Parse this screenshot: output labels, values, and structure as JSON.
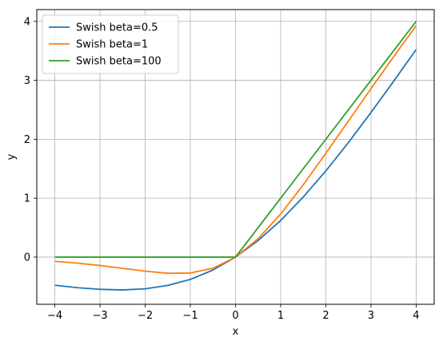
{
  "chart_data": {
    "type": "line",
    "title": "",
    "xlabel": "x",
    "ylabel": "y",
    "xlim": [
      -4.4,
      4.4
    ],
    "ylim": [
      -0.8,
      4.2
    ],
    "xticks": [
      -4,
      -3,
      -2,
      -1,
      0,
      1,
      2,
      3,
      4
    ],
    "xtick_labels": [
      "−4",
      "−3",
      "−2",
      "−1",
      "0",
      "1",
      "2",
      "3",
      "4"
    ],
    "yticks": [
      0,
      1,
      2,
      3,
      4
    ],
    "ytick_labels": [
      "0",
      "1",
      "2",
      "3",
      "4"
    ],
    "grid": true,
    "legend_position": "top-left",
    "x": [
      -4.0,
      -3.5,
      -3.0,
      -2.5,
      -2.0,
      -1.5,
      -1.0,
      -0.5,
      0.0,
      0.5,
      1.0,
      1.5,
      2.0,
      2.5,
      3.0,
      3.5,
      4.0
    ],
    "series": [
      {
        "name": "Swish beta=0.5",
        "color": "#1f77b4",
        "values": [
          -0.477,
          -0.519,
          -0.546,
          -0.557,
          -0.538,
          -0.48,
          -0.378,
          -0.219,
          0.0,
          0.281,
          0.622,
          1.02,
          1.462,
          1.943,
          2.454,
          2.981,
          3.523
        ]
      },
      {
        "name": "Swish beta=1",
        "color": "#ff7f0e",
        "values": [
          -0.072,
          -0.102,
          -0.142,
          -0.19,
          -0.238,
          -0.274,
          -0.269,
          -0.189,
          0.0,
          0.311,
          0.731,
          1.226,
          1.762,
          2.31,
          2.858,
          3.398,
          3.928
        ]
      },
      {
        "name": "Swish beta=100",
        "color": "#2ca02c",
        "values": [
          0.0,
          0.0,
          0.0,
          0.0,
          0.0,
          0.0,
          0.0,
          0.0,
          0.0,
          0.5,
          1.0,
          1.5,
          2.0,
          2.5,
          3.0,
          3.5,
          4.0
        ]
      }
    ]
  }
}
